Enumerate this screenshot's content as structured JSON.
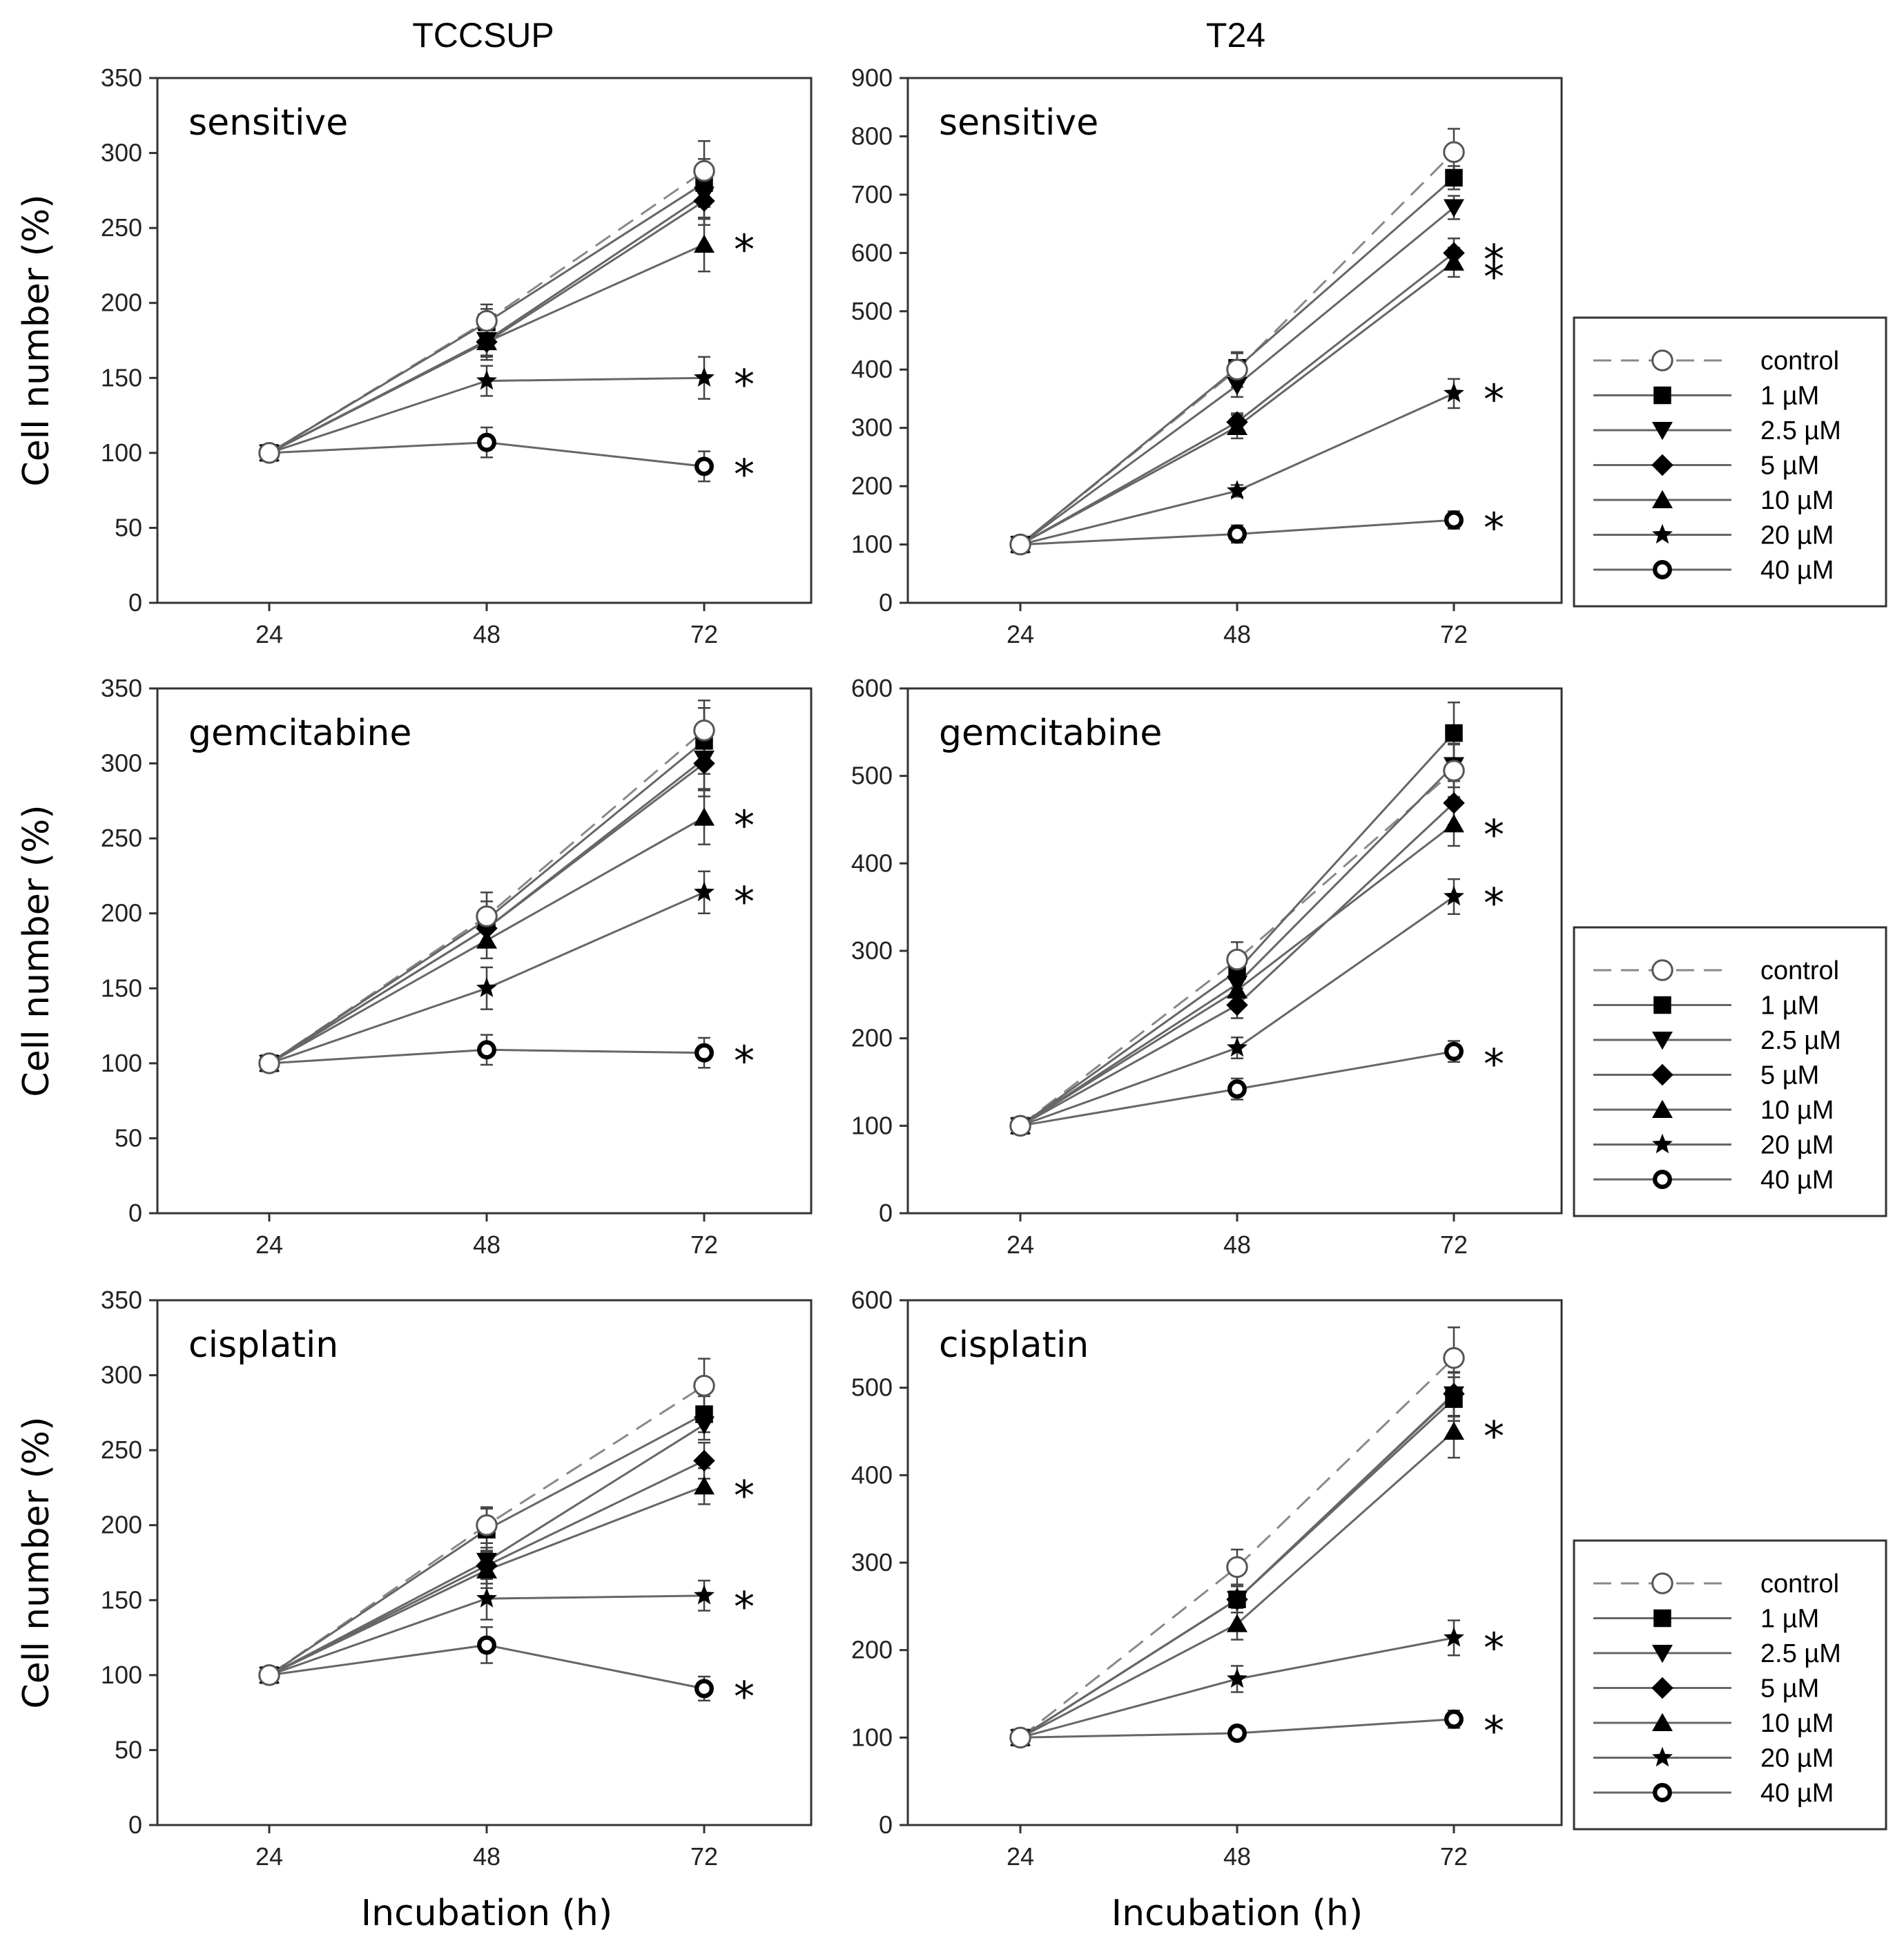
{
  "column_titles": [
    "TCCSUP",
    "T24"
  ],
  "chart_data": [
    {
      "type": "line",
      "panel_label": "sensitive",
      "column": "TCCSUP",
      "x": [
        24,
        48,
        72
      ],
      "xlabel": "",
      "ylabel": "Cell number (%)",
      "ylim": [
        0,
        350
      ],
      "yticks": [
        0,
        50,
        100,
        150,
        200,
        250,
        300,
        350
      ],
      "series": [
        {
          "name": "control",
          "values": [
            100,
            188,
            288
          ],
          "errors": [
            0,
            8,
            20
          ]
        },
        {
          "name": "1 µM",
          "values": [
            100,
            187,
            280
          ],
          "errors": [
            0,
            12,
            16
          ]
        },
        {
          "name": "2.5 µM",
          "values": [
            100,
            175,
            272
          ],
          "errors": [
            0,
            10,
            16
          ]
        },
        {
          "name": "5 µM",
          "values": [
            100,
            174,
            268
          ],
          "errors": [
            0,
            12,
            16
          ]
        },
        {
          "name": "10 µM",
          "values": [
            100,
            174,
            239
          ],
          "errors": [
            0,
            10,
            18
          ]
        },
        {
          "name": "20 µM",
          "values": [
            100,
            148,
            150
          ],
          "errors": [
            0,
            10,
            14
          ]
        },
        {
          "name": "40 µM",
          "values": [
            100,
            107,
            91
          ],
          "errors": [
            0,
            10,
            10
          ]
        }
      ],
      "significant_y": [
        240,
        150,
        90
      ]
    },
    {
      "type": "line",
      "panel_label": "sensitive",
      "column": "T24",
      "x": [
        24,
        48,
        72
      ],
      "xlabel": "",
      "ylabel": "",
      "ylim": [
        0,
        900
      ],
      "yticks": [
        0,
        100,
        200,
        300,
        400,
        500,
        600,
        700,
        800,
        900
      ],
      "series": [
        {
          "name": "control",
          "values": [
            100,
            400,
            773
          ],
          "errors": [
            0,
            30,
            40
          ]
        },
        {
          "name": "1 µM",
          "values": [
            100,
            403,
            729
          ],
          "errors": [
            0,
            25,
            20
          ]
        },
        {
          "name": "2.5 µM",
          "values": [
            100,
            373,
            678
          ],
          "errors": [
            0,
            20,
            20
          ]
        },
        {
          "name": "5 µM",
          "values": [
            100,
            310,
            600
          ],
          "errors": [
            0,
            15,
            25
          ]
        },
        {
          "name": "10 µM",
          "values": [
            100,
            302,
            584
          ],
          "errors": [
            0,
            20,
            25
          ]
        },
        {
          "name": "20 µM",
          "values": [
            100,
            192,
            359
          ],
          "errors": [
            0,
            10,
            25
          ]
        },
        {
          "name": "40 µM",
          "values": [
            100,
            118,
            142
          ],
          "errors": [
            0,
            15,
            15
          ]
        }
      ],
      "significant_y": [
        600,
        570,
        360,
        140
      ]
    },
    {
      "type": "line",
      "panel_label": "gemcitabine",
      "column": "TCCSUP",
      "x": [
        24,
        48,
        72
      ],
      "xlabel": "",
      "ylabel": "Cell number (%)",
      "ylim": [
        0,
        350
      ],
      "yticks": [
        0,
        50,
        100,
        150,
        200,
        250,
        300,
        350
      ],
      "series": [
        {
          "name": "control",
          "values": [
            100,
            198,
            322
          ],
          "errors": [
            0,
            10,
            20
          ]
        },
        {
          "name": "1 µM",
          "values": [
            100,
            196,
            315
          ],
          "errors": [
            0,
            18,
            22
          ]
        },
        {
          "name": "2.5 µM",
          "values": [
            100,
            190,
            303
          ],
          "errors": [
            0,
            12,
            20
          ]
        },
        {
          "name": "5 µM",
          "values": [
            100,
            190,
            300
          ],
          "errors": [
            0,
            12,
            22
          ]
        },
        {
          "name": "10 µM",
          "values": [
            100,
            182,
            264
          ],
          "errors": [
            0,
            12,
            18
          ]
        },
        {
          "name": "20 µM",
          "values": [
            100,
            150,
            214
          ],
          "errors": [
            0,
            14,
            14
          ]
        },
        {
          "name": "40 µM",
          "values": [
            100,
            109,
            107
          ],
          "errors": [
            0,
            10,
            10
          ]
        }
      ],
      "significant_y": [
        263,
        212,
        106
      ]
    },
    {
      "type": "line",
      "panel_label": "gemcitabine",
      "column": "T24",
      "x": [
        24,
        48,
        72
      ],
      "xlabel": "",
      "ylabel": "",
      "ylim": [
        0,
        600
      ],
      "yticks": [
        0,
        100,
        200,
        300,
        400,
        500,
        600
      ],
      "series": [
        {
          "name": "control",
          "values": [
            100,
            290,
            506
          ],
          "errors": [
            0,
            20,
            30
          ]
        },
        {
          "name": "1 µM",
          "values": [
            100,
            277,
            549
          ],
          "errors": [
            0,
            20,
            35
          ]
        },
        {
          "name": "2.5 µM",
          "values": [
            100,
            262,
            512
          ],
          "errors": [
            0,
            15,
            25
          ]
        },
        {
          "name": "5 µM",
          "values": [
            100,
            238,
            469
          ],
          "errors": [
            0,
            15,
            25
          ]
        },
        {
          "name": "10 µM",
          "values": [
            100,
            255,
            445
          ],
          "errors": [
            0,
            15,
            25
          ]
        },
        {
          "name": "20 µM",
          "values": [
            100,
            189,
            362
          ],
          "errors": [
            0,
            12,
            20
          ]
        },
        {
          "name": "40 µM",
          "values": [
            100,
            142,
            185
          ],
          "errors": [
            0,
            12,
            12
          ]
        }
      ],
      "significant_y": [
        440,
        362,
        178
      ]
    },
    {
      "type": "line",
      "panel_label": "cisplatin",
      "column": "TCCSUP",
      "x": [
        24,
        48,
        72
      ],
      "xlabel": "Incubation (h)",
      "ylabel": "Cell number (%)",
      "ylim": [
        0,
        350
      ],
      "yticks": [
        0,
        50,
        100,
        150,
        200,
        250,
        300,
        350
      ],
      "series": [
        {
          "name": "control",
          "values": [
            100,
            200,
            293
          ],
          "errors": [
            0,
            12,
            18
          ]
        },
        {
          "name": "1 µM",
          "values": [
            100,
            197,
            274
          ],
          "errors": [
            0,
            14,
            12
          ]
        },
        {
          "name": "2.5 µM",
          "values": [
            100,
            176,
            267
          ],
          "errors": [
            0,
            12,
            10
          ]
        },
        {
          "name": "5 µM",
          "values": [
            100,
            173,
            243
          ],
          "errors": [
            0,
            12,
            12
          ]
        },
        {
          "name": "10 µM",
          "values": [
            100,
            170,
            226
          ],
          "errors": [
            0,
            12,
            12
          ]
        },
        {
          "name": "20 µM",
          "values": [
            100,
            151,
            153
          ],
          "errors": [
            0,
            14,
            10
          ]
        },
        {
          "name": "40 µM",
          "values": [
            100,
            120,
            91
          ],
          "errors": [
            0,
            12,
            8
          ]
        }
      ],
      "significant_y": [
        224,
        150,
        90
      ]
    },
    {
      "type": "line",
      "panel_label": "cisplatin",
      "column": "T24",
      "x": [
        24,
        48,
        72
      ],
      "xlabel": "Incubation (h)",
      "ylabel": "",
      "ylim": [
        0,
        600
      ],
      "yticks": [
        0,
        100,
        200,
        300,
        400,
        500,
        600
      ],
      "series": [
        {
          "name": "control",
          "values": [
            100,
            295,
            534
          ],
          "errors": [
            0,
            20,
            35
          ]
        },
        {
          "name": "1 µM",
          "values": [
            100,
            258,
            487
          ],
          "errors": [
            0,
            15,
            25
          ]
        },
        {
          "name": "2.5 µM",
          "values": [
            100,
            258,
            492
          ],
          "errors": [
            0,
            15,
            25
          ]
        },
        {
          "name": "5 µM",
          "values": [
            100,
            258,
            493
          ],
          "errors": [
            0,
            15,
            25
          ]
        },
        {
          "name": "10 µM",
          "values": [
            100,
            230,
            450
          ],
          "errors": [
            0,
            18,
            30
          ]
        },
        {
          "name": "20 µM",
          "values": [
            100,
            167,
            214
          ],
          "errors": [
            0,
            15,
            20
          ]
        },
        {
          "name": "40 µM",
          "values": [
            100,
            105,
            121
          ],
          "errors": [
            0,
            8,
            10
          ]
        }
      ],
      "significant_y": [
        452,
        210,
        115
      ]
    }
  ],
  "legend": {
    "entries": [
      {
        "label": "control",
        "marker": "open-circle",
        "dashed": true
      },
      {
        "label": "1 µM",
        "marker": "square"
      },
      {
        "label": "2.5 µM",
        "marker": "triangle-down"
      },
      {
        "label": "5 µM",
        "marker": "diamond"
      },
      {
        "label": "10 µM",
        "marker": "triangle-up"
      },
      {
        "label": "20 µM",
        "marker": "star"
      },
      {
        "label": "40 µM",
        "marker": "ring"
      }
    ]
  },
  "significance_symbol": "*",
  "colors": {
    "line": "#666666",
    "control_line": "#888888",
    "marker": "#000000",
    "frame": "#333333"
  }
}
